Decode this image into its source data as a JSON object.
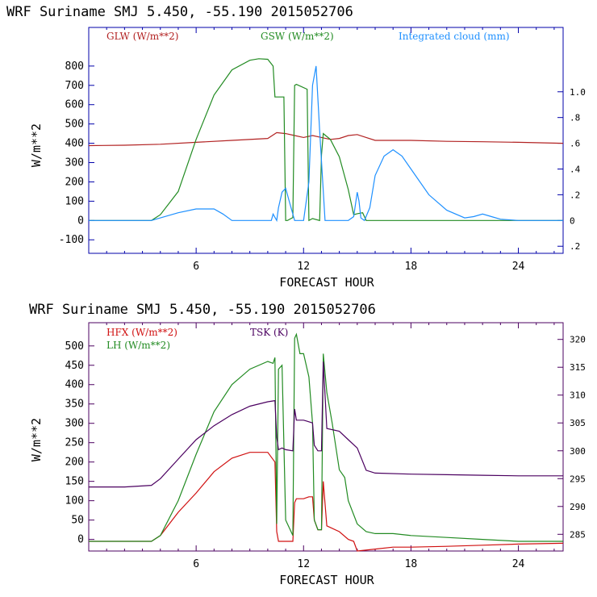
{
  "chart_data": [
    {
      "type": "line",
      "title": "WRF   Suriname SMJ   5.450, -55.190  2015052706",
      "xlabel": "FORECAST HOUR",
      "ylabel": "W/m**2",
      "xlim": [
        0,
        26.5
      ],
      "ylim": [
        -170,
        1000
      ],
      "xticks": [
        6,
        12,
        18,
        24
      ],
      "xtick_labels": [
        "6",
        "12",
        "18",
        "24"
      ],
      "yticks": [
        -100,
        0,
        100,
        200,
        300,
        400,
        500,
        600,
        700,
        800
      ],
      "ytick_labels": [
        "-100",
        "0",
        "100",
        "200",
        "300",
        "400",
        "500",
        "600",
        "700",
        "800"
      ],
      "y2lim": [
        -0.255,
        1.5
      ],
      "y2ticks": [
        -0.2,
        0,
        0.2,
        0.4,
        0.6,
        0.8,
        1.0
      ],
      "y2tick_labels": [
        ".2",
        "0",
        ".2",
        ".4",
        ".6",
        ".8",
        "1.0"
      ],
      "series": [
        {
          "name": "GLW (W/m**2)",
          "axis": "left",
          "color": "#b22222",
          "x": [
            0,
            2,
            4,
            6,
            8,
            10,
            10.5,
            11,
            11.5,
            12,
            12.5,
            13,
            13.5,
            14,
            14.5,
            15,
            15.5,
            16,
            18,
            20,
            22,
            24,
            26.5
          ],
          "y": [
            388,
            390,
            395,
            405,
            415,
            425,
            455,
            450,
            440,
            430,
            440,
            430,
            420,
            425,
            440,
            445,
            430,
            415,
            415,
            410,
            408,
            405,
            400
          ]
        },
        {
          "name": "GSW (W/m**2)",
          "axis": "left",
          "color": "#228b22",
          "x": [
            0,
            2,
            3.5,
            4,
            5,
            6,
            7,
            8,
            9,
            9.5,
            10,
            10.3,
            10.4,
            10.5,
            10.9,
            11.0,
            11.1,
            11.4,
            11.5,
            11.6,
            12.2,
            12.3,
            12.5,
            12.9,
            13.0,
            13.1,
            13.5,
            14,
            14.5,
            14.8,
            15,
            15.3,
            15.5,
            16,
            17,
            20,
            24,
            26.5
          ],
          "y": [
            0,
            0,
            0,
            30,
            150,
            420,
            650,
            780,
            830,
            838,
            835,
            800,
            640,
            640,
            640,
            0,
            0,
            15,
            700,
            705,
            680,
            0,
            10,
            0,
            340,
            450,
            420,
            330,
            160,
            30,
            35,
            40,
            0,
            0,
            0,
            0,
            0,
            0
          ]
        },
        {
          "name": "Integrated cloud (mm)",
          "axis": "right",
          "color": "#1e90ff",
          "x": [
            0,
            2,
            3,
            3.5,
            4,
            5,
            6,
            7,
            7.5,
            8,
            9,
            10,
            10.2,
            10.3,
            10.5,
            10.6,
            10.8,
            11,
            11.2,
            11.5,
            12,
            12.3,
            12.5,
            12.7,
            12.9,
            13.2,
            13.6,
            14,
            14.5,
            14.8,
            15,
            15.1,
            15.2,
            15.4,
            15.7,
            16,
            16.5,
            17,
            17.5,
            18,
            19,
            20,
            21,
            21.5,
            22,
            22.5,
            23,
            24,
            26.5
          ],
          "y": [
            0,
            0,
            0,
            0,
            0.02,
            0.06,
            0.09,
            0.09,
            0.05,
            0,
            0,
            0,
            0,
            0.05,
            0,
            0.1,
            0.22,
            0.25,
            0.15,
            0,
            0,
            0.3,
            1.05,
            1.2,
            0.7,
            0,
            0,
            0,
            0,
            0.03,
            0.22,
            0.15,
            0.02,
            0,
            0.1,
            0.35,
            0.5,
            0.55,
            0.5,
            0.4,
            0.2,
            0.08,
            0.02,
            0.03,
            0.05,
            0.03,
            0.01,
            0,
            0
          ]
        }
      ]
    },
    {
      "type": "line",
      "title": "WRF   Suriname SMJ   5.450, -55.190  2015052706",
      "xlabel": "FORECAST HOUR",
      "ylabel": "W/m**2",
      "xlim": [
        0,
        26.5
      ],
      "ylim": [
        -30,
        560
      ],
      "xticks": [
        6,
        12,
        18,
        24
      ],
      "xtick_labels": [
        "6",
        "12",
        "18",
        "24"
      ],
      "yticks": [
        0,
        50,
        100,
        150,
        200,
        250,
        300,
        350,
        400,
        450,
        500
      ],
      "ytick_labels": [
        "0",
        "50",
        "100",
        "150",
        "200",
        "250",
        "300",
        "350",
        "400",
        "450",
        "500"
      ],
      "y2lim": [
        282,
        323
      ],
      "y2ticks": [
        285,
        290,
        295,
        300,
        305,
        310,
        315,
        320
      ],
      "y2tick_labels": [
        "285",
        "290",
        "295",
        "300",
        "305",
        "310",
        "315",
        "320"
      ],
      "series": [
        {
          "name": "HFX (W/m**2)",
          "axis": "left",
          "color": "#d01010",
          "x": [
            0,
            2,
            3.5,
            4,
            5,
            6,
            7,
            8,
            9,
            10,
            10.4,
            10.5,
            10.6,
            10.8,
            11,
            11.4,
            11.5,
            11.6,
            12,
            12.3,
            12.5,
            12.6,
            12.8,
            13.0,
            13.1,
            13.3,
            14,
            14.5,
            14.8,
            15,
            16,
            17,
            18,
            20,
            22,
            24,
            26.5
          ],
          "y": [
            -5,
            -5,
            -5,
            10,
            70,
            120,
            175,
            210,
            225,
            225,
            200,
            20,
            -5,
            -5,
            -5,
            -5,
            95,
            105,
            105,
            110,
            110,
            50,
            25,
            25,
            150,
            35,
            20,
            0,
            -5,
            -30,
            -25,
            -20,
            -20,
            -18,
            -15,
            -12,
            -10
          ]
        },
        {
          "name": "LH (W/m**2)",
          "axis": "left",
          "color": "#228b22",
          "x": [
            0,
            2,
            3.5,
            4,
            5,
            6,
            7,
            8,
            9,
            10,
            10.3,
            10.4,
            10.5,
            10.6,
            10.8,
            11,
            11.4,
            11.5,
            11.6,
            11.8,
            12,
            12.3,
            12.5,
            12.6,
            12.8,
            13.0,
            13.1,
            13.3,
            13.6,
            14,
            14.3,
            14.5,
            15,
            15.5,
            16,
            17,
            18,
            20,
            22,
            24,
            26.5
          ],
          "y": [
            -5,
            -5,
            -5,
            10,
            100,
            220,
            330,
            400,
            440,
            460,
            455,
            470,
            40,
            440,
            450,
            50,
            10,
            520,
            530,
            480,
            480,
            420,
            300,
            50,
            25,
            25,
            480,
            380,
            300,
            180,
            160,
            100,
            40,
            20,
            15,
            15,
            10,
            5,
            0,
            -5,
            -5
          ]
        },
        {
          "name": "TSK (K)",
          "axis": "right",
          "color": "#4b0060",
          "x": [
            0,
            2,
            3.5,
            4,
            5,
            6,
            7,
            8,
            9,
            10,
            10.4,
            10.5,
            10.6,
            10.8,
            11,
            11.4,
            11.5,
            11.6,
            12,
            12.5,
            12.6,
            12.8,
            13.0,
            13.1,
            13.3,
            14,
            14.5,
            15,
            15.5,
            16,
            18,
            20,
            22,
            24,
            26.5
          ],
          "y": [
            293.5,
            293.5,
            293.8,
            295,
            298.5,
            302,
            304.5,
            306.5,
            308,
            308.8,
            309,
            302.5,
            300.2,
            300.5,
            300.2,
            300,
            307.5,
            305.5,
            305.5,
            305,
            301,
            300,
            300,
            316,
            304,
            303.5,
            302,
            300.5,
            296.5,
            296,
            295.8,
            295.7,
            295.6,
            295.5,
            295.5
          ]
        }
      ]
    }
  ]
}
